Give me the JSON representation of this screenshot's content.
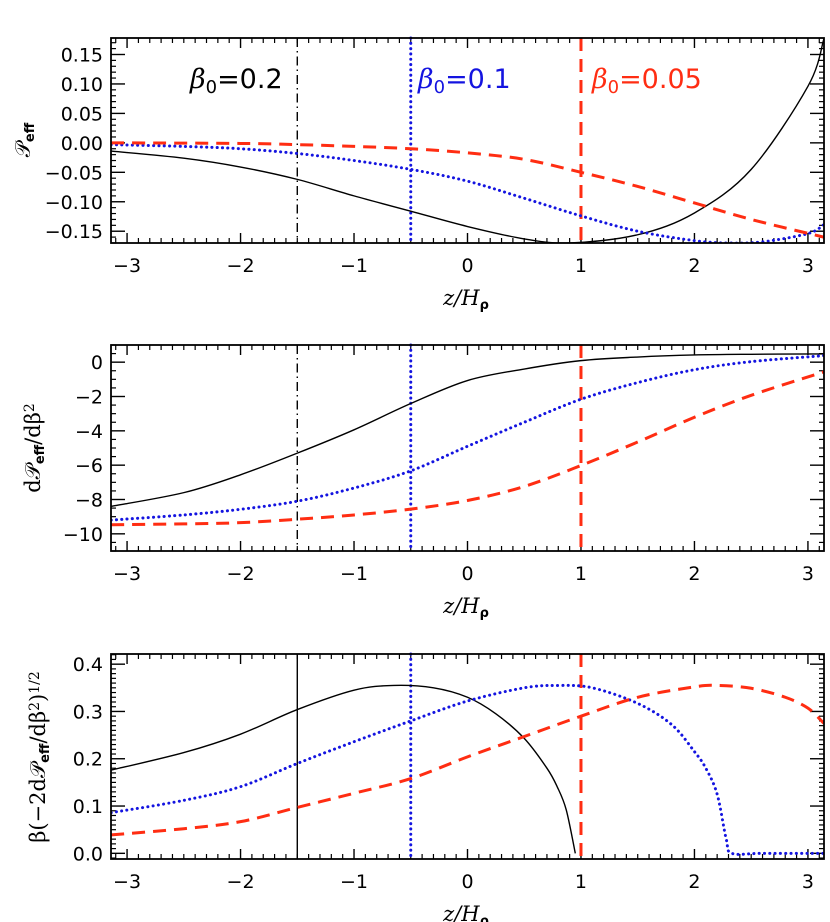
{
  "colors": {
    "black": "#000000",
    "blue": "#1414e0",
    "red": "#ff2d12"
  },
  "chart_data": [
    {
      "type": "line",
      "xlabel_parts": [
        {
          "t": "z/H",
          "s": "i"
        },
        {
          "t": "ρ",
          "s": "sub"
        }
      ],
      "ylabel_parts": [
        {
          "t": "𝒫",
          "s": "base"
        },
        {
          "t": "eff",
          "s": "sub"
        }
      ],
      "xlim": [
        -3.1416,
        3.1416
      ],
      "ylim": [
        -0.17,
        0.178
      ],
      "xticks": [
        -3,
        -2,
        -1,
        0,
        1,
        2,
        3
      ],
      "xtick_labels": [
        "−3",
        "−2",
        "−1",
        "0",
        "1",
        "2",
        "3"
      ],
      "yticks": [
        0.15,
        0.1,
        0.05,
        0.0,
        -0.05,
        -0.1,
        -0.15
      ],
      "ytick_labels": [
        "0.15",
        "0.10",
        "0.05",
        "0.00",
        "−0.05",
        "−0.10",
        "−0.15"
      ],
      "y_minor_step": 0.01,
      "annotations": [
        {
          "base": "β",
          "sub": "0",
          "rest": "=0.2",
          "color": "black"
        },
        {
          "base": "β",
          "sub": "0",
          "rest": "=0.1",
          "color": "blue"
        },
        {
          "base": "β",
          "sub": "0",
          "rest": "=0.05",
          "color": "red"
        }
      ],
      "vlines": [
        {
          "x": -1.5,
          "color": "black",
          "style": "dashdot"
        },
        {
          "x": -0.5,
          "color": "blue",
          "style": "dotted"
        },
        {
          "x": 1.0,
          "color": "red",
          "style": "dashed"
        }
      ],
      "series": [
        {
          "name": "β0=0.2",
          "color": "black",
          "style": "solid",
          "points": [
            [
              -3.14,
              -0.014
            ],
            [
              -2.5,
              -0.026
            ],
            [
              -2,
              -0.041
            ],
            [
              -1.5,
              -0.062
            ],
            [
              -1,
              -0.09
            ],
            [
              -0.5,
              -0.116
            ],
            [
              0,
              -0.142
            ],
            [
              0.5,
              -0.163
            ],
            [
              0.9,
              -0.17
            ],
            [
              1.5,
              -0.156
            ],
            [
              2,
              -0.119
            ],
            [
              2.5,
              -0.045
            ],
            [
              3,
              0.096
            ],
            [
              3.14,
              0.176
            ]
          ]
        },
        {
          "name": "β0=0.1",
          "color": "blue",
          "style": "dotted",
          "points": [
            [
              -3.14,
              -0.003
            ],
            [
              -2.5,
              -0.006
            ],
            [
              -2,
              -0.01
            ],
            [
              -1.5,
              -0.018
            ],
            [
              -1,
              -0.03
            ],
            [
              -0.5,
              -0.045
            ],
            [
              0,
              -0.065
            ],
            [
              0.5,
              -0.094
            ],
            [
              1,
              -0.124
            ],
            [
              1.5,
              -0.15
            ],
            [
              2,
              -0.166
            ],
            [
              2.3,
              -0.17
            ],
            [
              2.6,
              -0.168
            ],
            [
              3,
              -0.154
            ],
            [
              3.14,
              -0.139
            ]
          ]
        },
        {
          "name": "β0=0.05",
          "color": "red",
          "style": "dashed",
          "points": [
            [
              -3.14,
              0.0
            ],
            [
              -2,
              -0.001
            ],
            [
              -1.5,
              -0.003
            ],
            [
              -1,
              -0.006
            ],
            [
              -0.5,
              -0.01
            ],
            [
              0,
              -0.017
            ],
            [
              0.5,
              -0.028
            ],
            [
              1,
              -0.05
            ],
            [
              1.5,
              -0.074
            ],
            [
              2,
              -0.102
            ],
            [
              2.5,
              -0.13
            ],
            [
              3.14,
              -0.16
            ]
          ]
        }
      ]
    },
    {
      "type": "line",
      "xlabel_parts": [
        {
          "t": "z/H",
          "s": "i"
        },
        {
          "t": "ρ",
          "s": "sub"
        }
      ],
      "ylabel_parts": [
        {
          "t": "d𝒫",
          "s": "base"
        },
        {
          "t": "eff",
          "s": "sub"
        },
        {
          "t": "/dβ",
          "s": "base"
        },
        {
          "t": "2",
          "s": "sup"
        }
      ],
      "xlim": [
        -3.1416,
        3.1416
      ],
      "ylim": [
        -11,
        1
      ],
      "xticks": [
        -3,
        -2,
        -1,
        0,
        1,
        2,
        3
      ],
      "xtick_labels": [
        "−3",
        "−2",
        "−1",
        "0",
        "1",
        "2",
        "3"
      ],
      "yticks": [
        0,
        -2,
        -4,
        -6,
        -8,
        -10
      ],
      "ytick_labels": [
        "0",
        "−2",
        "−4",
        "−6",
        "−8",
        "−10"
      ],
      "y_minor_step": 0.5,
      "vlines": [
        {
          "x": -1.5,
          "color": "black",
          "style": "dashdot"
        },
        {
          "x": -0.5,
          "color": "blue",
          "style": "dotted"
        },
        {
          "x": 1.0,
          "color": "red",
          "style": "dashed"
        }
      ],
      "series": [
        {
          "name": "β0=0.2",
          "color": "black",
          "style": "solid",
          "points": [
            [
              -3.14,
              -8.4
            ],
            [
              -2.5,
              -7.6
            ],
            [
              -2,
              -6.56
            ],
            [
              -1.5,
              -5.3
            ],
            [
              -1,
              -3.94
            ],
            [
              -0.5,
              -2.41
            ],
            [
              0,
              -1.07
            ],
            [
              0.5,
              -0.4
            ],
            [
              1,
              0.09
            ],
            [
              1.5,
              0.3
            ],
            [
              2,
              0.42
            ],
            [
              2.5,
              0.46
            ],
            [
              3.14,
              0.48
            ]
          ]
        },
        {
          "name": "β0=0.1",
          "color": "blue",
          "style": "dotted",
          "points": [
            [
              -3.14,
              -9.2
            ],
            [
              -2.5,
              -8.9
            ],
            [
              -2,
              -8.57
            ],
            [
              -1.5,
              -8.1
            ],
            [
              -1,
              -7.33
            ],
            [
              -0.5,
              -6.33
            ],
            [
              0,
              -4.9
            ],
            [
              0.5,
              -3.5
            ],
            [
              1,
              -2.16
            ],
            [
              1.5,
              -1.19
            ],
            [
              2,
              -0.44
            ],
            [
              2.5,
              0.03
            ],
            [
              3.14,
              0.38
            ]
          ]
        },
        {
          "name": "β0=0.05",
          "color": "red",
          "style": "dashed",
          "points": [
            [
              -3.14,
              -9.47
            ],
            [
              -2.5,
              -9.42
            ],
            [
              -2,
              -9.35
            ],
            [
              -1.5,
              -9.15
            ],
            [
              -1,
              -8.9
            ],
            [
              -0.5,
              -8.56
            ],
            [
              0,
              -8.06
            ],
            [
              0.5,
              -7.24
            ],
            [
              1,
              -6.02
            ],
            [
              1.5,
              -4.65
            ],
            [
              2,
              -3.21
            ],
            [
              2.5,
              -1.93
            ],
            [
              3.14,
              -0.57
            ]
          ]
        }
      ]
    },
    {
      "type": "line",
      "xlabel_parts": [
        {
          "t": "z/H",
          "s": "i"
        },
        {
          "t": "ρ",
          "s": "sub"
        }
      ],
      "ylabel_parts": [
        {
          "t": "β(−2d𝒫",
          "s": "base"
        },
        {
          "t": "eff",
          "s": "sub"
        },
        {
          "t": "/dβ",
          "s": "base"
        },
        {
          "t": "2",
          "s": "sup"
        },
        {
          "t": ")",
          "s": "base"
        },
        {
          "t": "1/2",
          "s": "sup"
        }
      ],
      "xlim": [
        -3.1416,
        3.1416
      ],
      "ylim": [
        -0.012,
        0.4215
      ],
      "xticks": [
        -3,
        -2,
        -1,
        0,
        1,
        2,
        3
      ],
      "xtick_labels": [
        "−3",
        "−2",
        "−1",
        "0",
        "1",
        "2",
        "3"
      ],
      "yticks": [
        0.0,
        0.1,
        0.2,
        0.3,
        0.4
      ],
      "ytick_labels": [
        "0.0",
        "0.1",
        "0.2",
        "0.3",
        "0.4"
      ],
      "y_minor_step": 0.01,
      "vlines": [
        {
          "x": -1.5,
          "color": "black",
          "style": "solid"
        },
        {
          "x": -0.5,
          "color": "blue",
          "style": "dotted"
        },
        {
          "x": 1.0,
          "color": "red",
          "style": "dashed"
        }
      ],
      "series": [
        {
          "name": "β0=0.2",
          "color": "black",
          "style": "solid",
          "points": [
            [
              -3.14,
              0.176
            ],
            [
              -2.5,
              0.213
            ],
            [
              -2,
              0.252
            ],
            [
              -1.5,
              0.304
            ],
            [
              -1,
              0.345
            ],
            [
              -0.65,
              0.355
            ],
            [
              -0.3,
              0.35
            ],
            [
              0,
              0.33
            ],
            [
              0.25,
              0.295
            ],
            [
              0.5,
              0.243
            ],
            [
              0.7,
              0.18
            ],
            [
              0.79,
              0.141
            ],
            [
              0.87,
              0.092
            ],
            [
              0.95,
              0.0
            ]
          ]
        },
        {
          "name": "β0=0.1",
          "color": "blue",
          "style": "dotted",
          "points": [
            [
              -3.14,
              0.086
            ],
            [
              -2.5,
              0.112
            ],
            [
              -2,
              0.141
            ],
            [
              -1.5,
              0.19
            ],
            [
              -1,
              0.236
            ],
            [
              -0.5,
              0.28
            ],
            [
              0,
              0.322
            ],
            [
              0.5,
              0.35
            ],
            [
              0.8,
              0.355
            ],
            [
              1.1,
              0.35
            ],
            [
              1.5,
              0.317
            ],
            [
              1.8,
              0.272
            ],
            [
              2,
              0.215
            ],
            [
              2.1,
              0.18
            ],
            [
              2.2,
              0.125
            ],
            [
              2.28,
              0.03
            ],
            [
              2.33,
              0.0
            ],
            [
              2.6,
              0.0
            ],
            [
              3.14,
              0.0
            ]
          ]
        },
        {
          "name": "β0=0.05",
          "color": "red",
          "style": "dashed",
          "points": [
            [
              -3.14,
              0.039
            ],
            [
              -2.5,
              0.052
            ],
            [
              -2,
              0.067
            ],
            [
              -1.5,
              0.097
            ],
            [
              -1,
              0.127
            ],
            [
              -0.5,
              0.158
            ],
            [
              0,
              0.204
            ],
            [
              0.5,
              0.247
            ],
            [
              1,
              0.29
            ],
            [
              1.5,
              0.33
            ],
            [
              2,
              0.352
            ],
            [
              2.2,
              0.355
            ],
            [
              2.5,
              0.349
            ],
            [
              2.8,
              0.33
            ],
            [
              3,
              0.307
            ],
            [
              3.14,
              0.275
            ]
          ]
        }
      ]
    }
  ]
}
